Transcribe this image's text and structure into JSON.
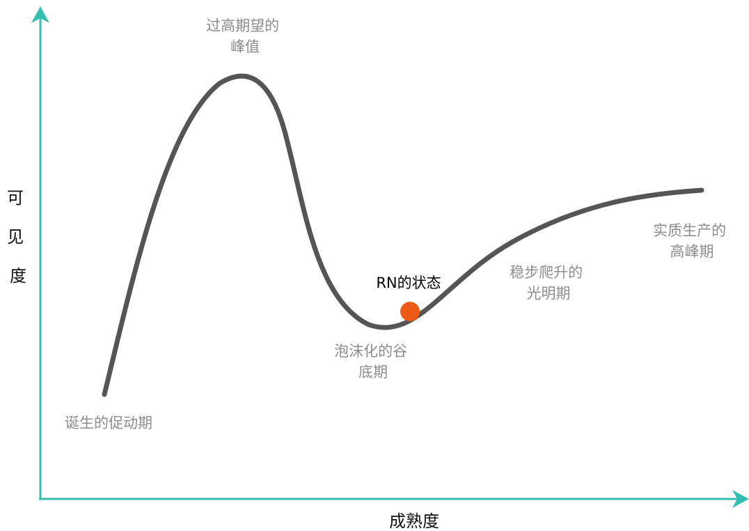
{
  "axes": {
    "x_title": "成熟度",
    "y_title_chars": [
      "可",
      "见",
      "度"
    ],
    "color": "#35bfae"
  },
  "curve": {
    "color": "#555555"
  },
  "stages": [
    {
      "lines": [
        "诞生的促动期"
      ]
    },
    {
      "lines": [
        "过高期望的",
        "峰值"
      ]
    },
    {
      "lines": [
        "泡沫化的谷",
        "底期"
      ]
    },
    {
      "lines": [
        "稳步爬升的",
        "光明期"
      ]
    },
    {
      "lines": [
        "实质生产的",
        "高峰期"
      ]
    }
  ],
  "marker": {
    "label": "RN的状态",
    "color": "#ee5b17"
  }
}
